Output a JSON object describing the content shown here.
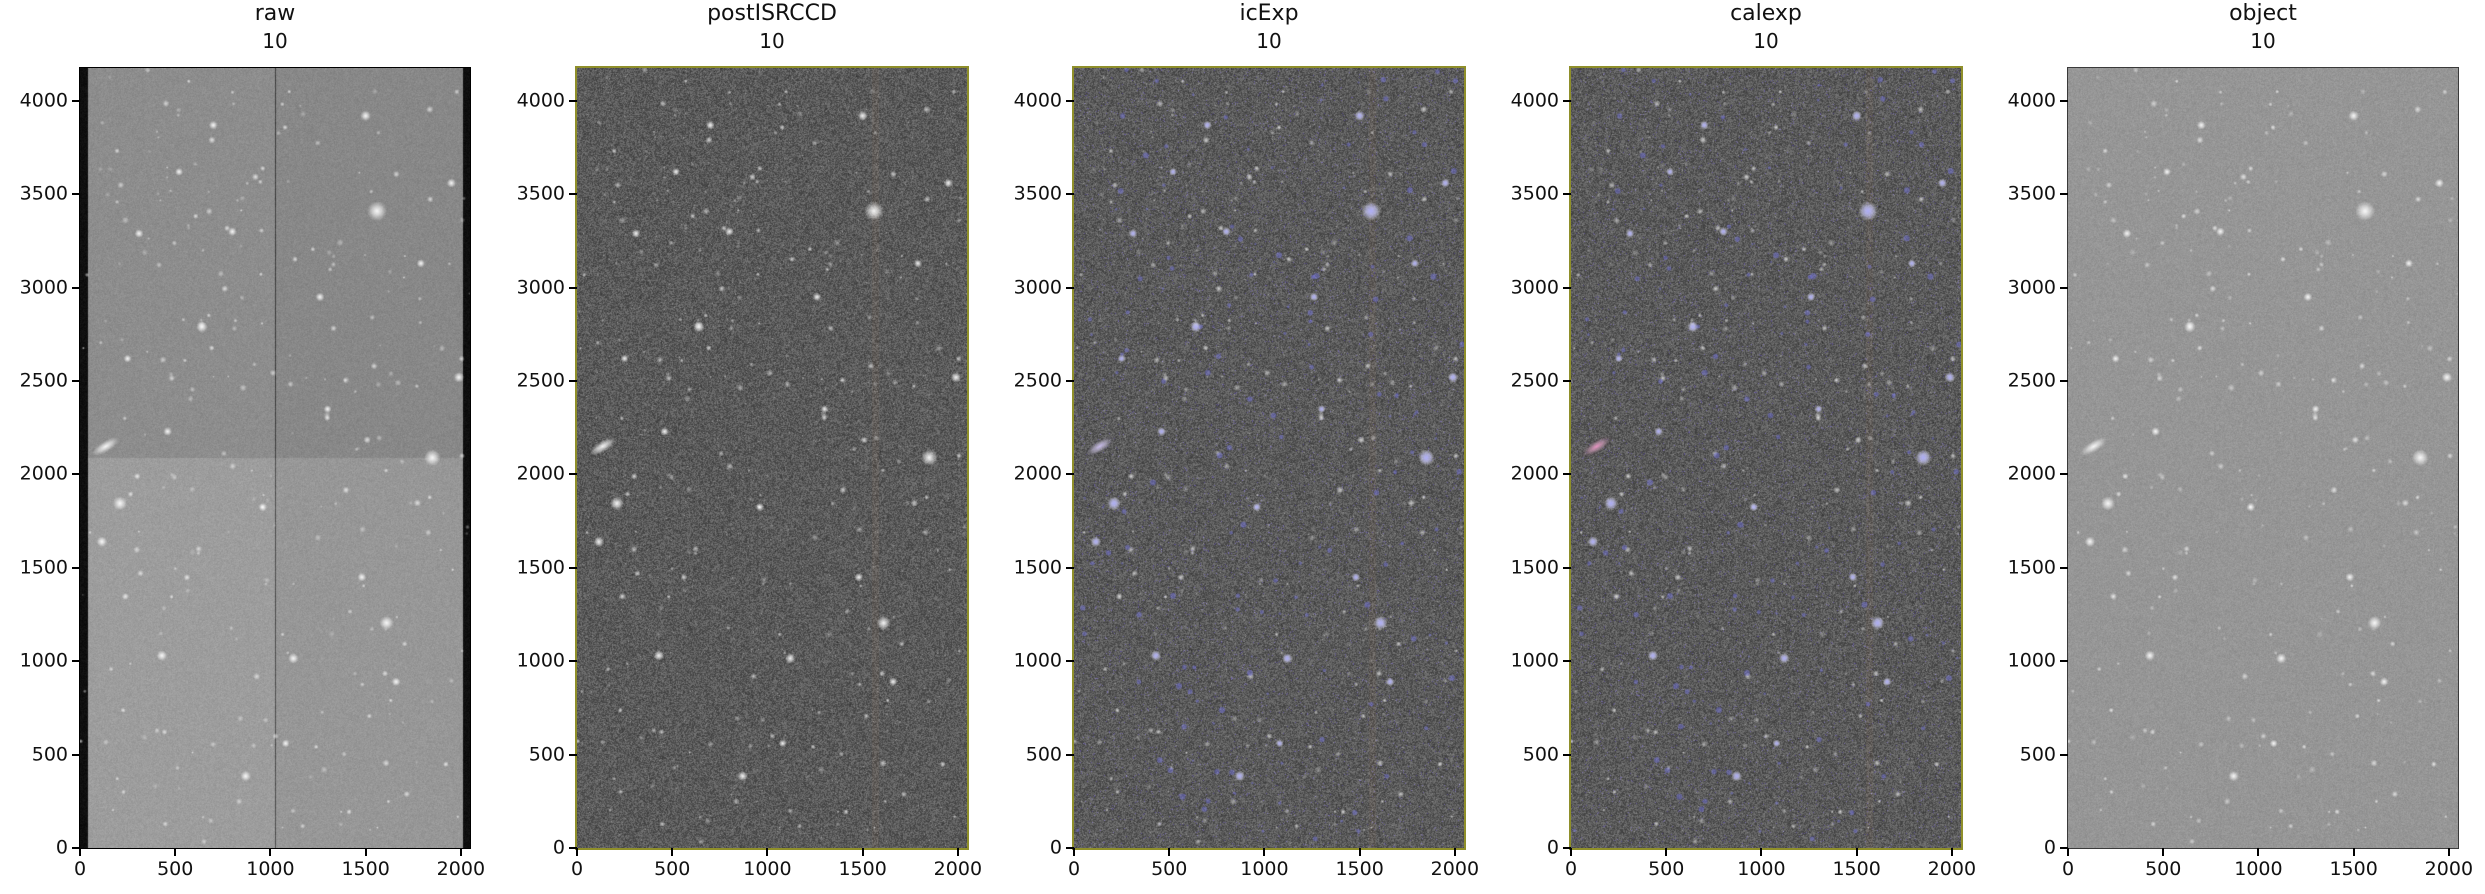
{
  "figure": {
    "background": "#ffffff",
    "panels": [
      {
        "title": "raw",
        "subtitle": "10",
        "render": "raw",
        "border_color": "#000000",
        "border_width": 1
      },
      {
        "title": "postISRCCD",
        "subtitle": "10",
        "render": "isr",
        "border_color": "#8f8f2a",
        "border_width": 2
      },
      {
        "title": "icExp",
        "subtitle": "10",
        "render": "icexp",
        "border_color": "#8f8f2a",
        "border_width": 2
      },
      {
        "title": "calexp",
        "subtitle": "10",
        "render": "calexp",
        "border_color": "#8f8f2a",
        "border_width": 2
      },
      {
        "title": "object",
        "subtitle": "10",
        "render": "object",
        "border_color": "#3a3a3a",
        "border_width": 1
      }
    ],
    "axes": {
      "xlim": [
        0,
        2048
      ],
      "ylim": [
        0,
        4176
      ],
      "xticks": [
        0,
        500,
        1000,
        1500,
        2000
      ],
      "yticks": [
        0,
        500,
        1000,
        1500,
        2000,
        2500,
        3000,
        3500,
        4000
      ]
    }
  },
  "colors": {
    "text": "#111111",
    "tick": "#000000",
    "image_border_olive": "#8f8f2a",
    "detection_blue": "#7878eb",
    "galaxy_pink": "#e150a0",
    "raw_light_gray": "#9a9a9a",
    "isr_dark_gray": "#5a5a5a",
    "object_gray": "#969696"
  },
  "chart_data": [
    {
      "type": "heatmap",
      "title": "raw",
      "subtitle": "10",
      "xlim": [
        0,
        2048
      ],
      "ylim": [
        0,
        4176
      ],
      "xticks": [
        0,
        500,
        1000,
        1500,
        2000
      ],
      "yticks": [
        0,
        500,
        1000,
        1500,
        2000,
        2500,
        3000,
        3500,
        4000
      ],
      "grid": false,
      "content": "light-gray raw CCD star-field exposure; black overscan bars on left and right edges; dark vertical amplifier seam at x~1024; upper half slightly darker than lower half; white stars and one elongated galaxy at lower left"
    },
    {
      "type": "heatmap",
      "title": "postISRCCD",
      "subtitle": "10",
      "xlim": [
        0,
        2048
      ],
      "ylim": [
        0,
        4176
      ],
      "xticks": [
        0,
        500,
        1000,
        1500,
        2000
      ],
      "yticks": [
        0,
        500,
        1000,
        1500,
        2000,
        2500,
        3000,
        3500,
        4000
      ],
      "grid": false,
      "content": "dark high-contrast grainy star field after instrument signature removal; olive/dark-yellow image border; same white stars and galaxy"
    },
    {
      "type": "heatmap",
      "title": "icExp",
      "subtitle": "10",
      "xlim": [
        0,
        2048
      ],
      "ylim": [
        0,
        4176
      ],
      "xticks": [
        0,
        500,
        1000,
        1500,
        2000
      ],
      "yticks": [
        0,
        500,
        1000,
        1500,
        2000,
        2500,
        3000,
        3500,
        4000
      ],
      "grid": false,
      "content": "dark grainy star field with blue-violet detection marks on sources; olive border; galaxy tinted blue-violet at lower left"
    },
    {
      "type": "heatmap",
      "title": "calexp",
      "subtitle": "10",
      "xlim": [
        0,
        2048
      ],
      "ylim": [
        0,
        4176
      ],
      "xticks": [
        0,
        500,
        1000,
        1500,
        2000
      ],
      "yticks": [
        0,
        500,
        1000,
        1500,
        2000,
        2500,
        3000,
        3500,
        4000
      ],
      "grid": false,
      "content": "calibrated exposure, dark grainy star field with blue-violet detections; olive border; galaxy highlighted pink/magenta at lower left"
    },
    {
      "type": "heatmap",
      "title": "object",
      "subtitle": "10",
      "xlim": [
        0,
        2048
      ],
      "ylim": [
        0,
        4176
      ],
      "xticks": [
        0,
        500,
        1000,
        1500,
        2000
      ],
      "yticks": [
        0,
        500,
        1000,
        1500,
        2000,
        2500,
        3000,
        3500,
        4000
      ],
      "grid": false,
      "content": "medium-gray smooth star field; white stars and elongated galaxy; no colored overlays"
    }
  ]
}
